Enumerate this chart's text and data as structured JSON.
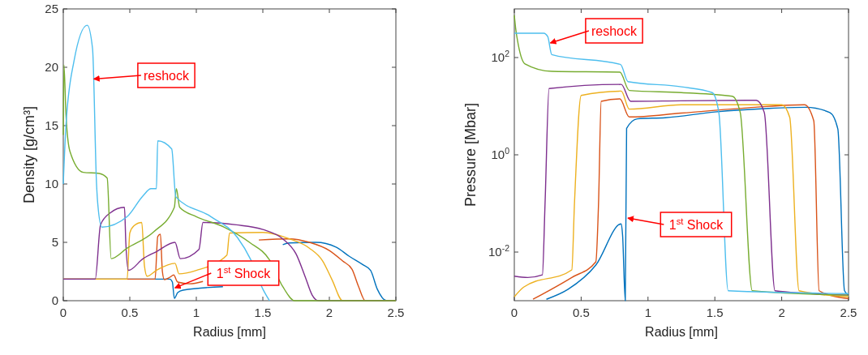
{
  "chart_data": [
    {
      "type": "line",
      "xlabel": "Radius [mm]",
      "ylabel": "Density [g/cm³]",
      "xlim": [
        0,
        2.5
      ],
      "xticks": [
        0,
        0.5,
        1,
        1.5,
        2,
        2.5
      ],
      "ylim": [
        0,
        25
      ],
      "yticks": [
        0,
        5,
        10,
        15,
        20,
        25
      ],
      "annotations": [
        {
          "text": "reshock",
          "x": 0.23,
          "y": 19
        },
        {
          "text": "1$^{st}$ Shock",
          "x": 0.84,
          "y": 1.1
        }
      ],
      "series": [
        {
          "color": "#0072bd",
          "x": [
            0,
            0.8,
            0.82,
            0.835,
            0.86,
            0.9,
            1.2,
            1.5,
            1.63,
            1.65,
            1.7,
            1.9,
            2.05,
            2.15,
            2.25,
            2.31,
            2.36,
            2.43,
            2.5
          ],
          "values": [
            1.85,
            1.85,
            1.6,
            0.2,
            0.7,
            0.9,
            1.2,
            null,
            null,
            4.8,
            4.95,
            5.0,
            4.6,
            3.8,
            3.1,
            2.6,
            1.0,
            0,
            0
          ]
        },
        {
          "color": "#d95319",
          "x": [
            0,
            0.69,
            0.71,
            0.73,
            0.745,
            0.76,
            0.8,
            0.83,
            0.86,
            0.95,
            1.05,
            1.45,
            1.47,
            1.7,
            1.85,
            2.0,
            2.1,
            2.17,
            2.22,
            2.27,
            2.5
          ],
          "values": [
            1.85,
            1.85,
            5.5,
            5.7,
            2.5,
            1.8,
            2.0,
            2.2,
            1.6,
            1.45,
            1.65,
            null,
            5.2,
            5.3,
            5.0,
            4.3,
            3.4,
            2.7,
            1.2,
            0,
            0
          ]
        },
        {
          "color": "#edb120",
          "x": [
            0,
            0.48,
            0.5,
            0.53,
            0.59,
            0.61,
            0.63,
            0.7,
            0.84,
            0.87,
            1.0,
            1.23,
            1.25,
            1.5,
            1.7,
            1.85,
            1.95,
            2.02,
            2.1,
            2.5
          ],
          "values": [
            1.85,
            1.85,
            5.8,
            6.4,
            6.7,
            3.0,
            2.1,
            2.6,
            3.2,
            2.3,
            2.6,
            3.9,
            5.8,
            5.85,
            5.3,
            4.5,
            3.4,
            1.8,
            0,
            0
          ]
        },
        {
          "color": "#7e2f8e",
          "x": [
            0,
            0.24,
            0.28,
            0.35,
            0.46,
            0.47,
            0.49,
            0.6,
            0.7,
            0.84,
            0.88,
            1.02,
            1.05,
            1.3,
            1.5,
            1.65,
            1.75,
            1.82,
            1.87,
            1.92,
            2.5
          ],
          "values": [
            1.85,
            1.85,
            6.5,
            7.5,
            8.0,
            5.0,
            2.6,
            3.6,
            4.2,
            5.0,
            3.6,
            4.4,
            6.7,
            6.5,
            6.1,
            5.3,
            4.0,
            2.0,
            0.5,
            0,
            0
          ]
        },
        {
          "color": "#77ac30",
          "x": [
            0,
            0.005,
            0.02,
            0.05,
            0.15,
            0.27,
            0.33,
            0.36,
            0.48,
            0.68,
            0.835,
            0.85,
            0.875,
            1.0,
            1.21,
            1.4,
            1.55,
            1.65,
            1.74,
            2.5
          ],
          "values": [
            14.2,
            20.2,
            16,
            12.8,
            11,
            10.9,
            10.5,
            3.6,
            4.5,
            5.9,
            8.0,
            9.6,
            8.0,
            7.2,
            6.3,
            5.0,
            3.5,
            1.2,
            0,
            0
          ]
        },
        {
          "color": "#4dbeee",
          "x": [
            0,
            0.02,
            0.08,
            0.18,
            0.22,
            0.25,
            0.26,
            0.29,
            0.48,
            0.6,
            0.66,
            0.7,
            0.71,
            0.815,
            0.846,
            1.11,
            1.31,
            1.41,
            1.5,
            1.55
          ],
          "values": [
            10,
            15,
            20.5,
            23.6,
            21.6,
            10,
            8.2,
            6.3,
            7.2,
            9.0,
            9.6,
            9.6,
            13.7,
            13.0,
            8.9,
            7.2,
            5.4,
            3.5,
            1.0,
            0
          ]
        }
      ]
    },
    {
      "type": "line",
      "xlabel": "Radius [mm]",
      "ylabel": "Pressure [Mbar]",
      "log": "y",
      "xlim": [
        0,
        2.5
      ],
      "xticks": [
        0,
        0.5,
        1,
        1.5,
        2,
        2.5
      ],
      "ylim": [
        0.001,
        1000
      ],
      "yticks": [
        {
          "value": 0.01,
          "label": "10$^{-2}$"
        },
        {
          "value": 1,
          "label": "10$^{0}$"
        },
        {
          "value": 100,
          "label": "10$^{2}$"
        }
      ],
      "annotations": [
        {
          "text": "reshock",
          "x": 0.27,
          "y": 200
        },
        {
          "text": "1$^{st}$ Shock",
          "x": 0.85,
          "y": 0.05
        }
      ],
      "series": [
        {
          "color": "#0072bd",
          "x": [
            0.24,
            0.4,
            0.61,
            0.8,
            0.81,
            0.83,
            0.84,
            0.92,
            1.13,
            1.5,
            1.9,
            2.18,
            2.36,
            2.42,
            2.47,
            2.5
          ],
          "values": [
            0.00107,
            0.0017,
            0.0054,
            0.038,
            0.022,
            0.001,
            3.5,
            5.5,
            5.8,
            7.6,
            9.0,
            9.5,
            7.4,
            3.4,
            0.0016,
            0.0013
          ]
        },
        {
          "color": "#d95319",
          "x": [
            0.14,
            0.43,
            0.61,
            0.63,
            0.65,
            0.79,
            0.86,
            1.25,
            1.8,
            2.17,
            2.24,
            2.28,
            2.5
          ],
          "values": [
            0.00107,
            0.003,
            0.0063,
            0.1,
            12.6,
            14.1,
            6.0,
            7.2,
            9.5,
            10.7,
            5.0,
            0.0016,
            0.0011
          ]
        },
        {
          "color": "#edb120",
          "x": [
            0,
            0.07,
            0.43,
            0.45,
            0.5,
            0.8,
            0.86,
            1.25,
            2.0,
            2.06,
            2.13,
            2.5
          ],
          "values": [
            0.0012,
            0.0019,
            0.0043,
            0.1,
            16.6,
            20.4,
            8.7,
            10.7,
            10.7,
            5.9,
            0.0016,
            0.0012
          ]
        },
        {
          "color": "#7e2f8e",
          "x": [
            0,
            0.1,
            0.21,
            0.23,
            0.26,
            0.8,
            0.87,
            1.25,
            1.81,
            1.87,
            1.95,
            2.5
          ],
          "values": [
            0.0032,
            0.003,
            0.0034,
            0.1,
            23,
            28,
            12.6,
            12.9,
            13.2,
            7.4,
            0.0016,
            0.0013
          ]
        },
        {
          "color": "#77ac30",
          "x": [
            0,
            0.01,
            0.03,
            0.08,
            0.28,
            0.79,
            0.86,
            1.25,
            1.63,
            1.69,
            1.78,
            2.5
          ],
          "values": [
            741,
            400,
            182,
            74,
            52,
            50,
            21,
            19,
            16,
            7.4,
            0.0016,
            0.0013
          ]
        },
        {
          "color": "#4dbeee",
          "x": [
            0,
            0.22,
            0.25,
            0.28,
            0.795,
            0.85,
            1.25,
            1.48,
            1.53,
            1.6,
            2.5
          ],
          "values": [
            316,
            316,
            269,
            115,
            72,
            32,
            25,
            19,
            7.4,
            0.0016,
            0.0014
          ]
        }
      ]
    }
  ]
}
